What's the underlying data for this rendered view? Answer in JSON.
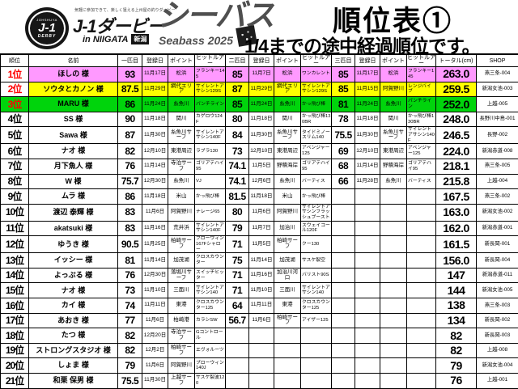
{
  "header": {
    "badge": {
      "top": "JOHSHUYA",
      "main": "J-1",
      "bottom": "DERBY"
    },
    "tagline": "気軽に参加できて、楽しく狙える上州屋の釣りダービー",
    "brand": "J-1ダービー",
    "location": "in NIIGATA",
    "location_badge": "新潟",
    "series": "シーバス",
    "series_sub": "Seabass 2025",
    "title": "順位表①",
    "subtitle": "1/4までの途中経過順位です。"
  },
  "colors": {
    "rank1_highlight": "#ff99ff",
    "rank2_highlight": "#ffff00",
    "rank3_highlight": "#00d40c",
    "rank_text": "#ff0000",
    "border": "#000000"
  },
  "table": {
    "columns": [
      "順位",
      "名前",
      "一匹目",
      "登録日",
      "ポイント",
      "ヒットルアー",
      "二匹目",
      "登録日",
      "ポイント",
      "ヒットルアー",
      "三匹目",
      "登録日",
      "ポイント",
      "ヒットルアー",
      "トータル(cm)",
      "SHOP"
    ],
    "rows": [
      {
        "rank": "1位",
        "name": "ほしの 様",
        "highlight": "#ff99ff",
        "rank_red": true,
        "rank_filled": false,
        "cells": [
          "93",
          "11月17日",
          "松浜",
          "フランキー145",
          "85",
          "11月7日",
          "松浜",
          "ワンカレント",
          "85",
          "11月17日",
          "松浜",
          "フランキー145",
          "263.0",
          "燕三条-004"
        ]
      },
      {
        "rank": "2位",
        "name": "ソウタとカノン 様",
        "highlight": "#ffff00",
        "rank_red": true,
        "rank_filled": false,
        "cells": [
          "87.5",
          "11月29日",
          "網代エリア",
          "サイレントアサシン129S",
          "87",
          "11月29日",
          "網代エリア",
          "サイレントアサシン129S",
          "85",
          "11月15日",
          "阿賀野川",
          "レンジバイブ",
          "259.5",
          "新潟女池-003"
        ]
      },
      {
        "rank": "3位",
        "name": "MARU 様",
        "highlight": "#00d40c",
        "rank_red": true,
        "rank_filled": true,
        "cells": [
          "86",
          "11月24日",
          "糸魚川",
          "パンチライン",
          "85",
          "11月24日",
          "糸魚川",
          "かっ飛び棒",
          "81",
          "11月24日",
          "糸魚川",
          "パンチライン",
          "252.0",
          "上越-005"
        ]
      },
      {
        "rank": "4位",
        "name": "SS 様",
        "highlight": null,
        "rank_red": false,
        "rank_filled": false,
        "cells": [
          "90",
          "11月18日",
          "関川",
          "カゲロウ124F",
          "80",
          "11月18日",
          "関川",
          "かっ飛び棒130BR",
          "78",
          "11月18日",
          "関川",
          "かっ飛び棒130BR",
          "248.0",
          "長野川中島-001"
        ]
      },
      {
        "rank": "5位",
        "name": "Sawa 様",
        "highlight": null,
        "rank_red": false,
        "rank_filled": false,
        "cells": [
          "87",
          "11月30日",
          "糸魚川サーフ",
          "サイレントアサシン140F",
          "84",
          "11月30日",
          "糸魚川サーフ",
          "タイドミノースリム140",
          "75.5",
          "11月30日",
          "糸魚川サーフ",
          "サイレントアサシン140F",
          "246.5",
          "長野-002"
        ]
      },
      {
        "rank": "6位",
        "name": "ナオ 様",
        "highlight": null,
        "rank_red": false,
        "rank_filled": false,
        "cells": [
          "82",
          "12月10日",
          "東港周辺",
          "ラブラ130",
          "73",
          "12月10日",
          "東港周辺",
          "アベンジャー125",
          "69",
          "12月10日",
          "東港周辺",
          "アベンジャー125",
          "224.0",
          "新潟赤道-008"
        ]
      },
      {
        "rank": "7位",
        "name": "月下魚人 様",
        "highlight": null,
        "rank_red": false,
        "rank_filled": false,
        "cells": [
          "76",
          "11月14日",
          "寺泊サーフ",
          "ゴリアテハイ95",
          "74.1",
          "11月5日",
          "野積海岸",
          "ゴリアテハイ95",
          "68",
          "11月14日",
          "野積海岸",
          "ゴリアテハイ95",
          "218.1",
          "燕三条-005"
        ]
      },
      {
        "rank": "8位",
        "name": "W 様",
        "highlight": null,
        "rank_red": false,
        "rank_filled": false,
        "cells": [
          "75.7",
          "12月30日",
          "糸魚川",
          "VJ",
          "74.1",
          "12月6日",
          "糸魚川",
          "バーティス",
          "66",
          "11月28日",
          "糸魚川",
          "バーティス",
          "215.8",
          "上越-004"
        ]
      },
      {
        "rank": "9位",
        "name": "ムラ 様",
        "highlight": null,
        "rank_red": false,
        "rank_filled": false,
        "cells": [
          "86",
          "11月18日",
          "米山",
          "かっ飛び棒",
          "81.5",
          "11月18日",
          "米山",
          "かっ飛び棒",
          "",
          "",
          "",
          "",
          "167.5",
          "燕三条-002"
        ]
      },
      {
        "rank": "10位",
        "name": "渡辺 泰輝 様",
        "highlight": null,
        "rank_red": false,
        "rank_filled": false,
        "cells": [
          "83",
          "11月6日",
          "阿賀野川",
          "ナレージ65",
          "80",
          "11月6日",
          "阿賀野川",
          "サイレントアサシンフラッシュブースト",
          "",
          "",
          "",
          "",
          "163.0",
          "新潟女池-002"
        ]
      },
      {
        "rank": "11位",
        "name": "akatsuki 様",
        "highlight": null,
        "rank_red": false,
        "rank_filled": false,
        "cells": [
          "83",
          "11月16日",
          "荒井浜",
          "サイレントアサシン140F",
          "79",
          "11月7日",
          "加治川",
          "スウェイコール120F",
          "",
          "",
          "",
          "",
          "162.0",
          "新潟赤道-001"
        ]
      },
      {
        "rank": "12位",
        "name": "ゆうき 様",
        "highlight": null,
        "rank_red": false,
        "rank_filled": false,
        "cells": [
          "90.5",
          "11月25日",
          "柏崎サーフ",
          "ブローウィン167Fシャロー",
          "71",
          "11月5日",
          "柏崎サーフ",
          "クー130",
          "",
          "",
          "",
          "",
          "161.5",
          "新長岡-001"
        ]
      },
      {
        "rank": "13位",
        "name": "イッシー 様",
        "highlight": null,
        "rank_red": false,
        "rank_filled": false,
        "cells": [
          "81",
          "11月14日",
          "加茂湖",
          "クロスカウンター",
          "75",
          "11月14日",
          "加茂湖",
          "サスケ裂空",
          "",
          "",
          "",
          "",
          "156.0",
          "新長岡-004"
        ]
      },
      {
        "rank": "14位",
        "name": "よっぷる 様",
        "highlight": null,
        "rank_red": false,
        "rank_filled": false,
        "cells": [
          "76",
          "12月30日",
          "落堀川サーフ",
          "スイッチヒッター",
          "71",
          "11月16日",
          "加治川河口",
          "バリスト90S",
          "",
          "",
          "",
          "",
          "147",
          "新潟赤道-011"
        ]
      },
      {
        "rank": "15位",
        "name": "ナオ 様",
        "highlight": null,
        "rank_red": false,
        "rank_filled": false,
        "cells": [
          "73",
          "11月10日",
          "三面川",
          "サイレントアサシン140",
          "71",
          "11月10日",
          "三面川",
          "サイレントアサシン140",
          "",
          "",
          "",
          "",
          "144",
          "新潟女池-005"
        ]
      },
      {
        "rank": "16位",
        "name": "カイ 様",
        "highlight": null,
        "rank_red": false,
        "rank_filled": false,
        "cells": [
          "74",
          "11月11日",
          "東港",
          "クロスカウンター125",
          "64",
          "11月11日",
          "東港",
          "クロスカウンター125",
          "",
          "",
          "",
          "",
          "138",
          "燕三条-003"
        ]
      },
      {
        "rank": "17位",
        "name": "あおき 様",
        "highlight": null,
        "rank_red": false,
        "rank_filled": false,
        "cells": [
          "77",
          "11月6日",
          "柏崎港",
          "カラシSW",
          "56.7",
          "11月6日",
          "柏崎サーフ",
          "アイザー125",
          "",
          "",
          "",
          "",
          "134",
          "新長岡-002"
        ]
      },
      {
        "rank": "18位",
        "name": "たつ 様",
        "highlight": null,
        "rank_red": false,
        "rank_filled": false,
        "cells": [
          "82",
          "12月20日",
          "寺泊サーフ",
          "Gコントロール",
          "",
          "",
          "",
          "",
          "",
          "",
          "",
          "",
          "82",
          "新長岡-003"
        ]
      },
      {
        "rank": "19位",
        "name": "ストロングスタジオ 様",
        "highlight": null,
        "rank_red": false,
        "rank_filled": false,
        "cells": [
          "82",
          "12月2日",
          "柏崎サーフ",
          "エヴォルーツ",
          "",
          "",
          "",
          "",
          "",
          "",
          "",
          "",
          "82",
          "上越-008"
        ]
      },
      {
        "rank": "20位",
        "name": "しょま 様",
        "highlight": null,
        "rank_red": false,
        "rank_filled": false,
        "cells": [
          "79",
          "11月6日",
          "阿賀野川",
          "ブローウィン140J",
          "",
          "",
          "",
          "",
          "",
          "",
          "",
          "",
          "79",
          "新潟女池-004"
        ]
      },
      {
        "rank": "21位",
        "name": "和栗 保男 様",
        "highlight": null,
        "rank_red": false,
        "rank_filled": false,
        "cells": [
          "75.5",
          "11月30日",
          "上越サーフ",
          "サスケ裂波120",
          "",
          "",
          "",
          "",
          "",
          "",
          "",
          "",
          "76",
          "上越-001"
        ]
      }
    ]
  }
}
